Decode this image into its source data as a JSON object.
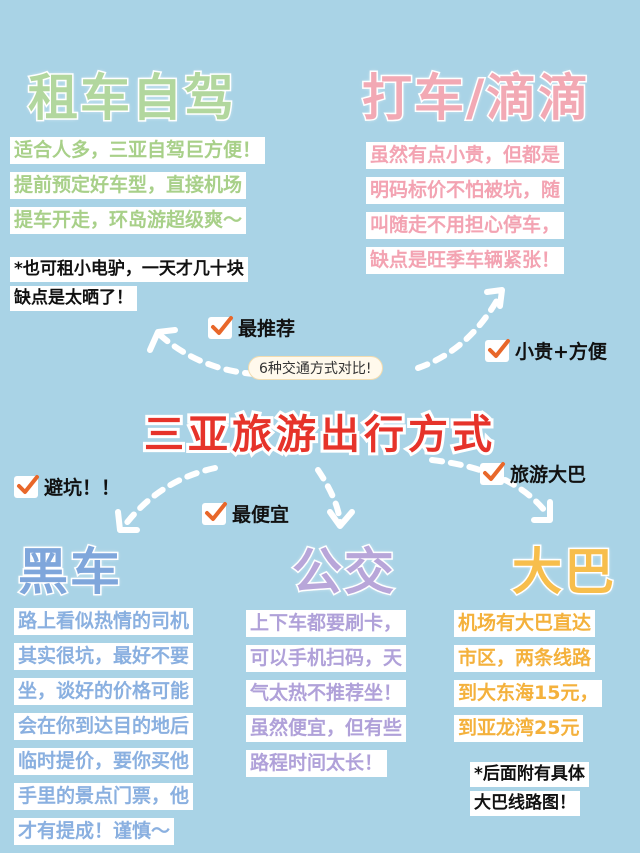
{
  "main_title": "三亚旅游出行方式",
  "subtitle": "6种交通方式对比!",
  "sections": {
    "rental": {
      "title": "租车自驾",
      "lines": [
        "适合人多，三亚自驾巨方便！",
        "提前预定好车型，直接机场",
        "提车开走，环岛游超级爽～"
      ],
      "note": [
        "*也可租小电驴，一天才几十块",
        "缺点是太晒了！"
      ],
      "tag": "最推荐"
    },
    "taxi": {
      "title": "打车/滴滴",
      "lines": [
        "虽然有点小贵，但都是",
        "明码标价不怕被坑，随",
        "叫随走不用担心停车，",
        "缺点是旺季车辆紧张！"
      ],
      "tag": "小贵+方便"
    },
    "black_car": {
      "title": "黑车",
      "lines": [
        "路上看似热情的司机",
        "其实很坑，最好不要",
        "坐，谈好的价格可能",
        "会在你到达目的地后",
        "临时提价，要你买他",
        "手里的景点门票，他",
        "才有提成！谨慎～"
      ],
      "tag": "避坑！！"
    },
    "bus": {
      "title": "公交",
      "lines": [
        "上下车都要刷卡，",
        "可以手机扫码，天",
        "气太热不推荐坐！",
        "虽然便宜，但有些",
        "路程时间太长！"
      ],
      "tag": "最便宜"
    },
    "coach": {
      "title": "大巴",
      "lines": [
        "机场有大巴直达",
        "市区，两条线路",
        "到大东海15元，",
        "到亚龙湾25元"
      ],
      "note": [
        "*后面附有具体",
        "大巴线路图！"
      ],
      "tag": "旅游大巴"
    }
  },
  "colors": {
    "background": "#a9d3e6",
    "main_title": "#e6332a",
    "rental": "#b2d79e",
    "taxi": "#f2a9b4",
    "black_car": "#7fa6db",
    "bus": "#b8a6d9",
    "coach": "#f7be4c",
    "check": "#e8672a"
  },
  "icons": [
    "check-icon",
    "dashed-arrow-icon"
  ]
}
